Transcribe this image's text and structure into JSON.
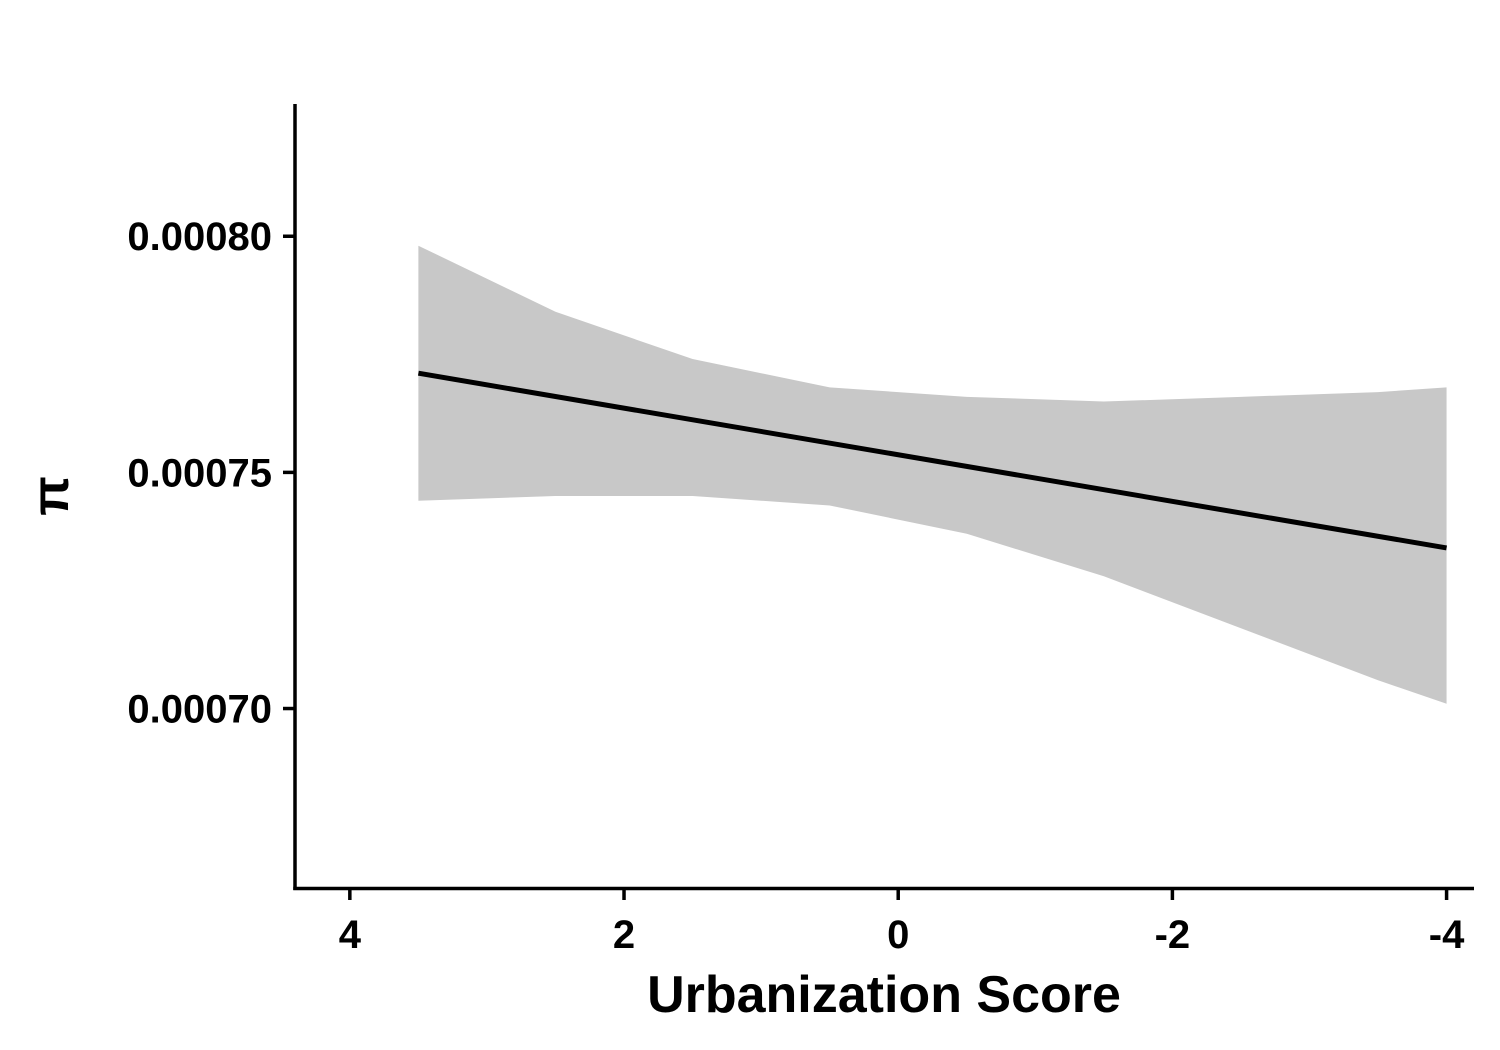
{
  "chart_data": {
    "type": "line",
    "title": "",
    "xlabel": "Urbanization Score",
    "ylabel": "π",
    "x_reversed": true,
    "xlim": [
      4.4,
      -4.2
    ],
    "ylim": [
      0.000662,
      0.000828
    ],
    "x_ticks": [
      4,
      2,
      0,
      -2,
      -4
    ],
    "x_tick_labels": [
      "4",
      "2",
      "0",
      "-2",
      "-4"
    ],
    "y_ticks": [
      0.0007,
      0.00075,
      0.0008
    ],
    "y_tick_labels": [
      "0.00070",
      "0.00075",
      "0.00080"
    ],
    "grid": false,
    "legend": "none",
    "series": [
      {
        "x": [
          3.5,
          -4.0
        ],
        "y": [
          0.000771,
          0.000734
        ]
      }
    ],
    "confidence_band": {
      "x": [
        3.5,
        2.5,
        1.5,
        0.5,
        -0.5,
        -1.5,
        -2.5,
        -3.5,
        -4.0
      ],
      "upper": [
        0.000798,
        0.000784,
        0.000774,
        0.000768,
        0.000766,
        0.000765,
        0.000766,
        0.000767,
        0.000768
      ],
      "lower": [
        0.000744,
        0.000745,
        0.000745,
        0.000743,
        0.000737,
        0.000728,
        0.000717,
        0.000706,
        0.000701
      ]
    },
    "colors": {
      "line": "#000000",
      "band": "#c8c8c8",
      "axis": "#000000"
    }
  }
}
